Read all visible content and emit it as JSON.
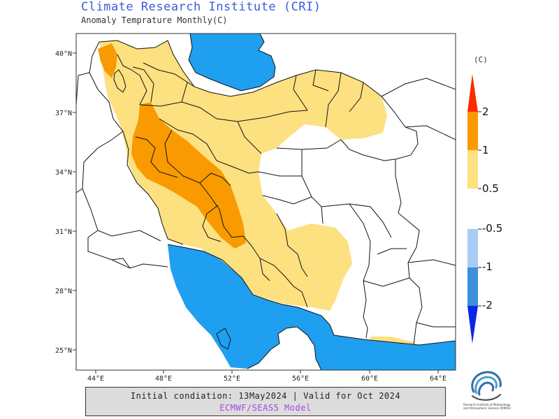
{
  "header": {
    "title": "Climate Research Institute (CRI)",
    "subtitle": "Anomaly Temprature Monthly(C)"
  },
  "map": {
    "lat_labels": [
      "40°N",
      "37°N",
      "34°N",
      "31°N",
      "28°N",
      "25°N"
    ],
    "lon_labels": [
      "44°E",
      "48°E",
      "52°E",
      "56°E",
      "60°E",
      "64°E"
    ],
    "colors": {
      "sea": "#1e9ff0",
      "anom_05_1": "#fde080",
      "anom_1_2": "#f99a00",
      "border": "#111111"
    }
  },
  "legend": {
    "unit": "(C)",
    "labels": [
      "2",
      "1",
      "0.5",
      "-0.5",
      "-1",
      "-2"
    ],
    "colors": {
      "above_2": "#fe2a00",
      "1_2": "#f99a00",
      "05_1": "#fde080",
      "m05_m1": "#a9cbf5",
      "m1_m2": "#3b90d8",
      "below_m2": "#0a27e6"
    }
  },
  "footer": {
    "line1": "Initial condiation: 13May2024 | Valid for Oct 2024",
    "line2": "ECMWF/SEAS5 Model"
  },
  "logo": {
    "text": "Research Institute of Meteorology and Atmospheric Science (RIMAS)"
  }
}
